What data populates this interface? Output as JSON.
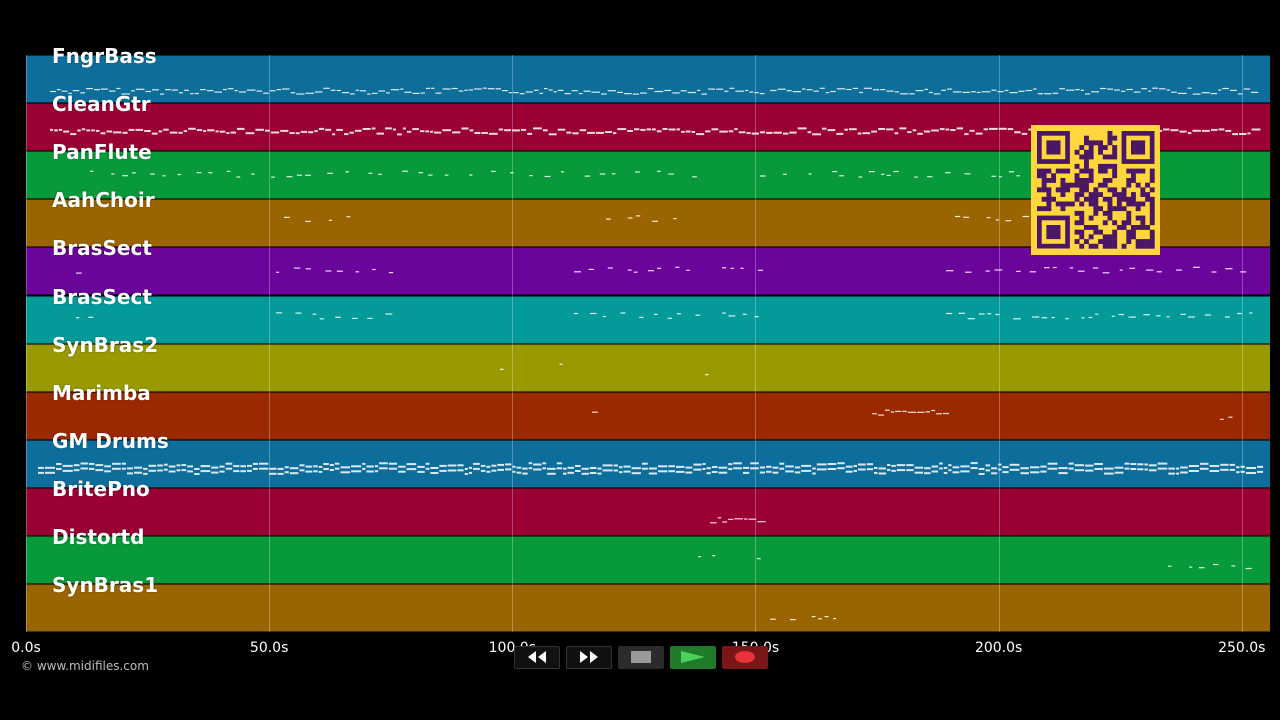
{
  "tracks": [
    {
      "name": "FngrBass",
      "color": "#0d6e9c"
    },
    {
      "name": "CleanGtr",
      "color": "#9a0034"
    },
    {
      "name": "PanFlute",
      "color": "#089a3a"
    },
    {
      "name": "AahChoir",
      "color": "#9a6500"
    },
    {
      "name": "BrasSect",
      "color": "#6a049b"
    },
    {
      "name": "BrasSect",
      "color": "#049a9a"
    },
    {
      "name": "SynBras2",
      "color": "#989a00"
    },
    {
      "name": "Marimba",
      "color": "#9a2900"
    },
    {
      "name": "GM Drums",
      "color": "#0d6e9c"
    },
    {
      "name": "BritePno",
      "color": "#9a0034"
    },
    {
      "name": "Distortd",
      "color": "#089a3a"
    },
    {
      "name": "SynBras1",
      "color": "#9a6500"
    }
  ],
  "timeline": {
    "ticks": [
      "0.0s",
      "50.0s",
      "100.0s",
      "150.0s",
      "200.0s",
      "250.0s"
    ],
    "tick_values": [
      0,
      50,
      100,
      150,
      200,
      250
    ]
  },
  "credit": "© www.midifiles.com",
  "transport": {
    "rewind_icon": "rewind-icon",
    "fast_forward_icon": "fast-forward-icon",
    "stop_icon": "stop-icon",
    "play_icon": "play-icon",
    "record_icon": "record-icon",
    "play_color": "#1f7a2a",
    "record_color": "#7a1616"
  },
  "qr_code": {
    "color": "#ffd63b",
    "module_color": "#4a1766"
  }
}
